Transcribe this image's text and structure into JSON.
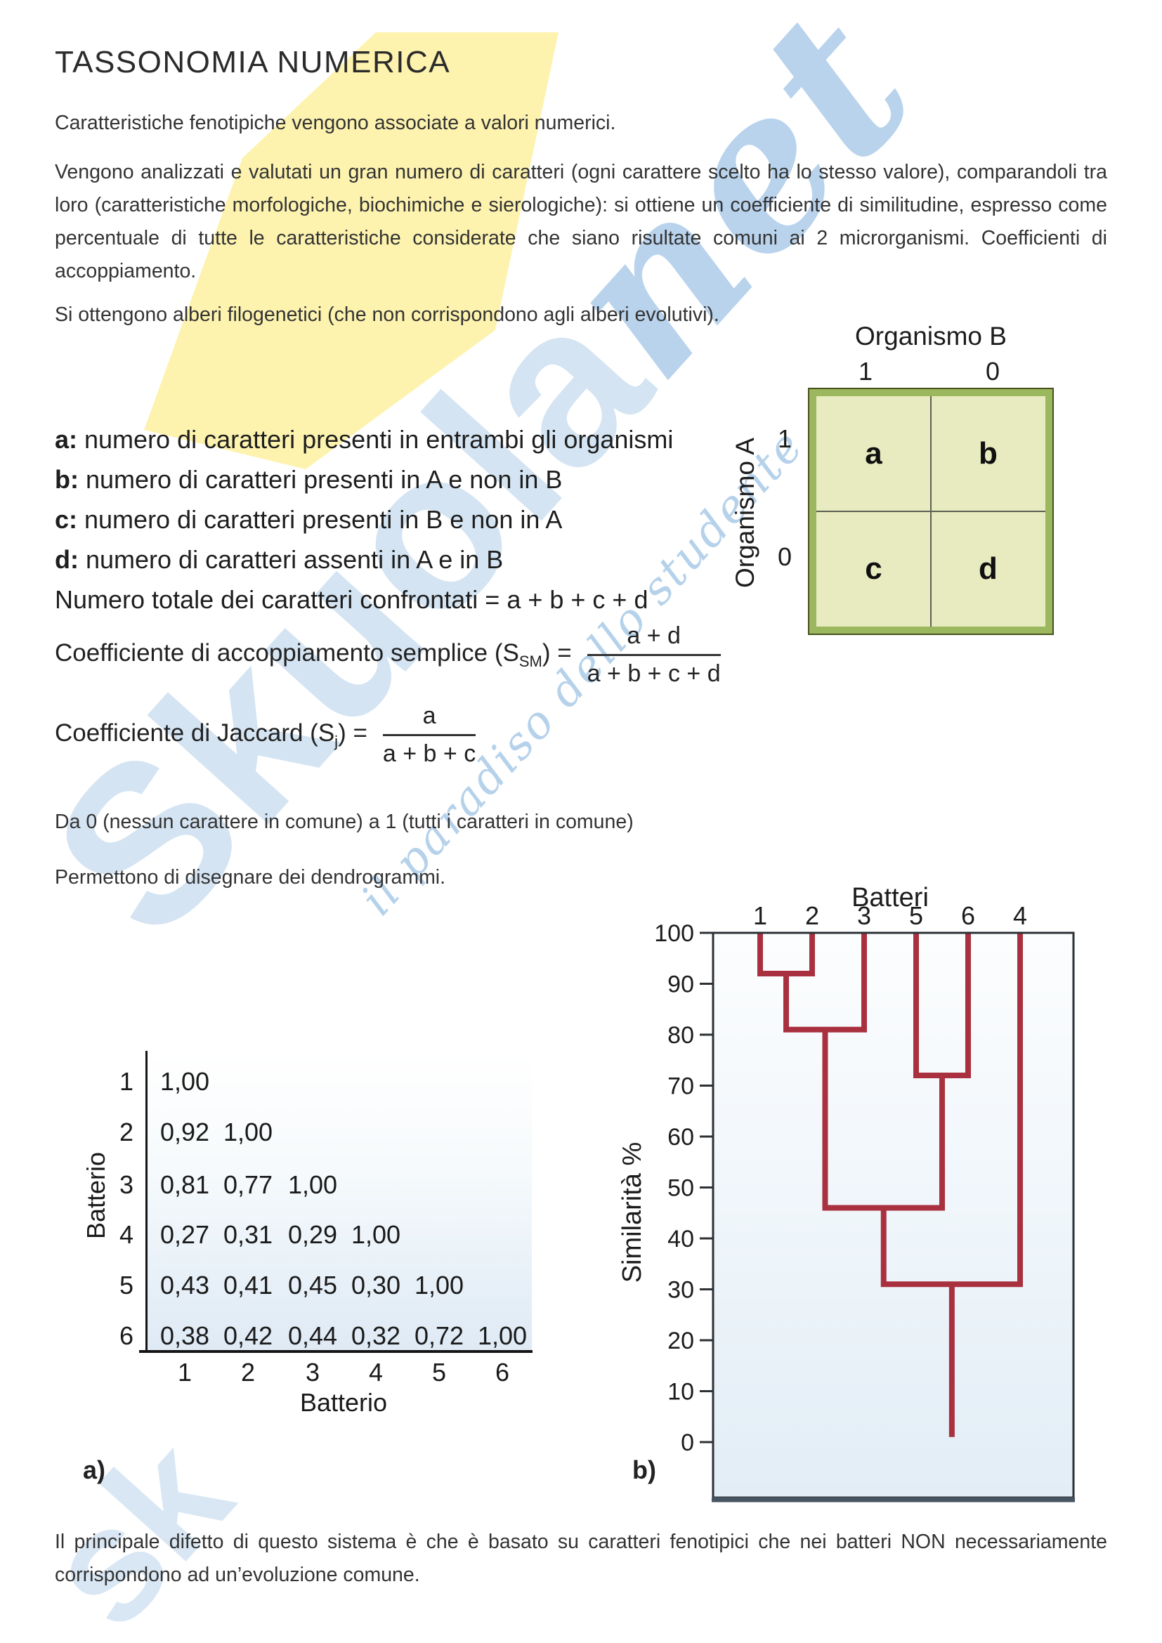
{
  "watermark": {
    "word_main": "Skuola",
    "word_suffix": "net",
    "tagline": "il paradiso dello studente",
    "corner_fragment": "sk",
    "yellow": "#fcf098",
    "blue_light": "#aac9e6",
    "blue_mid": "#74a7db"
  },
  "doc": {
    "title": "TASSONOMIA NUMERICA",
    "p1": "Caratteristiche fenotipiche vengono associate a valori numerici.",
    "p2": "Vengono analizzati e valutati un gran numero di caratteri (ogni carattere scelto ha lo stesso valore), comparandoli tra loro (caratteristiche morfologiche, biochimiche e sierologiche): si ottiene un coefficiente di similitudine, espresso come percentuale di tutte le caratteristiche considerate che siano risultate comuni ai 2 microrganismi. Coefficienti di accoppiamento.",
    "p3": "Si ottengono alberi filogenetici (che non corrispondono agli alberi evolutivi).",
    "p4": "Da 0 (nessun carattere in comune) a 1 (tutti i caratteri in comune)",
    "p5": "Permettono di disegnare dei dendrogrammi.",
    "p6": "Il principale difetto di questo sistema è che è basato su caratteri fenotipici che nei batteri NON necessariamente corrispondono ad un’evoluzione comune."
  },
  "definitions": {
    "a_key": "a:",
    "a_text": " numero di caratteri presenti in entrambi gli organismi",
    "b_key": "b:",
    "b_text": " numero di caratteri presenti in A e non in B",
    "c_key": "c:",
    "c_text": " numero di caratteri presenti in B e non in A",
    "d_key": "d:",
    "d_text": " numero di caratteri assenti in A e in B",
    "total": "Numero totale dei caratteri confrontati = a + b + c + d"
  },
  "contingency": {
    "top_label": "Organismo B",
    "side_label": "Organismo A",
    "col_headers": [
      "1",
      "0"
    ],
    "row_headers": [
      "1",
      "0"
    ],
    "cells": [
      "a",
      "b",
      "c",
      "d"
    ],
    "border_color": "#9cb85e",
    "fill_color": "#e7ebbf"
  },
  "formulas": {
    "f1_pre": "Coefficiente di accoppiamento semplice (S",
    "f1_sub": "SM",
    "f1_post": ") =",
    "f1_num": "a + d",
    "f1_den": "a + b + c + d",
    "f2_pre": "Coefficiente di Jaccard (S",
    "f2_sub": "j",
    "f2_post": ") =",
    "f2_num": "a",
    "f2_den": "a + b + c"
  },
  "figures": {
    "label_a": "a)",
    "label_b": "b)",
    "matrix": {
      "y_axis_label": "Batterio",
      "x_axis_label": "Batterio",
      "row_labels": [
        "1",
        "2",
        "3",
        "4",
        "5",
        "6"
      ],
      "col_labels": [
        "1",
        "2",
        "3",
        "4",
        "5",
        "6"
      ],
      "values": [
        [
          "1,00"
        ],
        [
          "0,92",
          "1,00"
        ],
        [
          "0,81",
          "0,77",
          "1,00"
        ],
        [
          "0,27",
          "0,31",
          "0,29",
          "1,00"
        ],
        [
          "0,43",
          "0,41",
          "0,45",
          "0,30",
          "1,00"
        ],
        [
          "0,38",
          "0,42",
          "0,44",
          "0,32",
          "0,72",
          "1,00"
        ]
      ]
    },
    "dendrogram": {
      "title": "Batteri",
      "y_axis_label": "Similarità %",
      "leaves": [
        "1",
        "2",
        "3",
        "5",
        "6",
        "4"
      ],
      "ticks": [
        100,
        90,
        80,
        70,
        60,
        50,
        40,
        30,
        20,
        10,
        0
      ],
      "merges": [
        {
          "left": "L0",
          "right": "L1",
          "sim": 92
        },
        {
          "left": "C0",
          "right": "L2",
          "sim": 81
        },
        {
          "left": "L3",
          "right": "L4",
          "sim": 72
        },
        {
          "left": "C1",
          "right": "C2",
          "sim": 46
        },
        {
          "left": "C3",
          "right": "L5",
          "sim": 31
        }
      ],
      "root_tip_sim": 1,
      "line_color": "#a9303f"
    }
  },
  "chart_data": [
    {
      "type": "table",
      "title": "Matrice di similarità tra batteri",
      "xlabel": "Batterio",
      "ylabel": "Batterio",
      "row_labels": [
        "1",
        "2",
        "3",
        "4",
        "5",
        "6"
      ],
      "col_labels": [
        "1",
        "2",
        "3",
        "4",
        "5",
        "6"
      ],
      "rows": [
        [
          1.0
        ],
        [
          0.92,
          1.0
        ],
        [
          0.81,
          0.77,
          1.0
        ],
        [
          0.27,
          0.31,
          0.29,
          1.0
        ],
        [
          0.43,
          0.41,
          0.45,
          0.3,
          1.0
        ],
        [
          0.38,
          0.42,
          0.44,
          0.32,
          0.72,
          1.0
        ]
      ]
    },
    {
      "type": "dendrogram",
      "title": "Batteri",
      "ylabel": "Similarità %",
      "ylim": [
        0,
        100
      ],
      "grid": false,
      "leaf_order": [
        "1",
        "2",
        "3",
        "5",
        "6",
        "4"
      ],
      "joins": [
        {
          "members": [
            "1",
            "2"
          ],
          "similarity": 92
        },
        {
          "members": [
            "1+2",
            "3"
          ],
          "similarity": 81
        },
        {
          "members": [
            "5",
            "6"
          ],
          "similarity": 72
        },
        {
          "members": [
            "1+2+3",
            "5+6"
          ],
          "similarity": 46
        },
        {
          "members": [
            "1+2+3+5+6",
            "4"
          ],
          "similarity": 31
        }
      ],
      "root_stem_similarity": 1
    }
  ]
}
